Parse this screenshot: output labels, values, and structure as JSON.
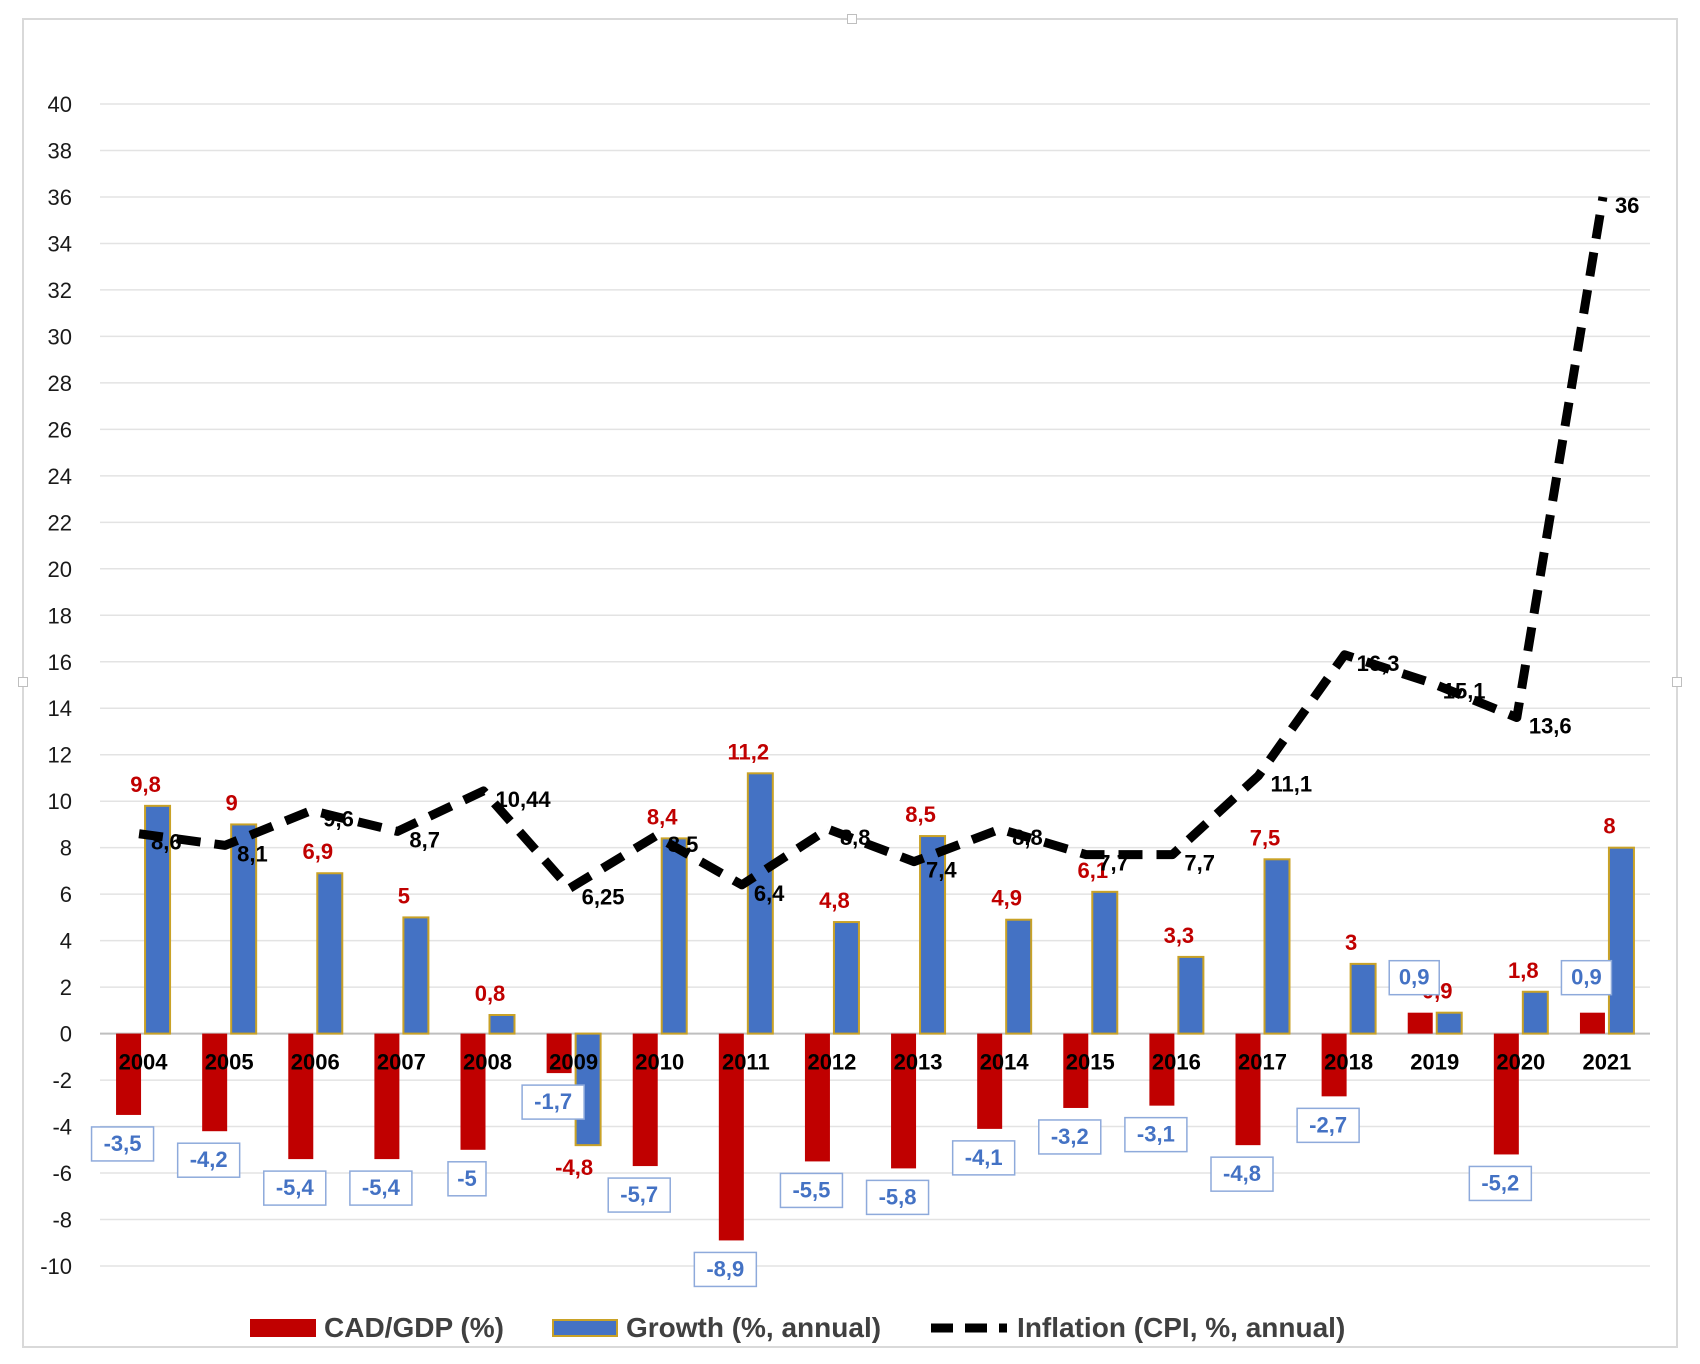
{
  "chart_data": {
    "type": "bar",
    "categories": [
      "2004",
      "2005",
      "2006",
      "2007",
      "2008",
      "2009",
      "2010",
      "2011",
      "2012",
      "2013",
      "2014",
      "2015",
      "2016",
      "2017",
      "2018",
      "2019",
      "2020",
      "2021"
    ],
    "ylim": [
      -10,
      40
    ],
    "yticks": [
      -10,
      -8,
      -6,
      -4,
      -2,
      0,
      2,
      4,
      6,
      8,
      10,
      12,
      14,
      16,
      18,
      20,
      22,
      24,
      26,
      28,
      30,
      32,
      34,
      36,
      38,
      40
    ],
    "grid": true,
    "legend_position": "bottom",
    "series": [
      {
        "name": "CAD/GDP (%)",
        "kind": "bar",
        "color": "#c00000",
        "values": [
          -3.5,
          -4.2,
          -5.4,
          -5.4,
          -5.0,
          -1.7,
          -5.7,
          -8.9,
          -5.5,
          -5.8,
          -4.1,
          -3.2,
          -3.1,
          -4.8,
          -2.7,
          0.9,
          -5.2,
          0.9
        ],
        "labels": [
          "-3,5",
          "-4,2",
          "-5,4",
          "-5,4",
          "-5",
          "-1,7",
          "-5,7",
          "-8,9",
          "-5,5",
          "-5,8",
          "-4,1",
          "-3,2",
          "-3,1",
          "-4,8",
          "-2,7",
          "0,9",
          "-5,2",
          "0,9"
        ]
      },
      {
        "name": "Growth (%, annual)",
        "kind": "bar",
        "color": "#4472c4",
        "values": [
          9.8,
          9.0,
          6.9,
          5.0,
          0.8,
          -4.8,
          8.4,
          11.2,
          4.8,
          8.5,
          4.9,
          6.1,
          3.3,
          7.5,
          3.0,
          0.9,
          1.8,
          8.0
        ],
        "labels": [
          "9,8",
          "9",
          "6,9",
          "5",
          "0,8",
          "-4,8",
          "8,4",
          "11,2",
          "4,8",
          "8,5",
          "4,9",
          "6,1",
          "3,3",
          "7,5",
          "3",
          "0,9",
          "1,8",
          "8"
        ]
      },
      {
        "name": "Inflation (CPI, %, annual)",
        "kind": "line",
        "color": "#000000",
        "values": [
          8.6,
          8.1,
          9.6,
          8.7,
          10.44,
          6.25,
          8.5,
          6.4,
          8.8,
          7.4,
          8.8,
          7.7,
          7.7,
          11.1,
          16.3,
          15.1,
          13.6,
          36.0
        ],
        "labels": [
          "8,6",
          "8,1",
          "9,6",
          "8,7",
          "10,44",
          "6,25",
          "8,5",
          "6,4",
          "8,8",
          "7,4",
          "8,8",
          "7,7",
          "7,7",
          "11,1",
          "16,3",
          "15,1",
          "13,6",
          "36"
        ]
      }
    ]
  }
}
